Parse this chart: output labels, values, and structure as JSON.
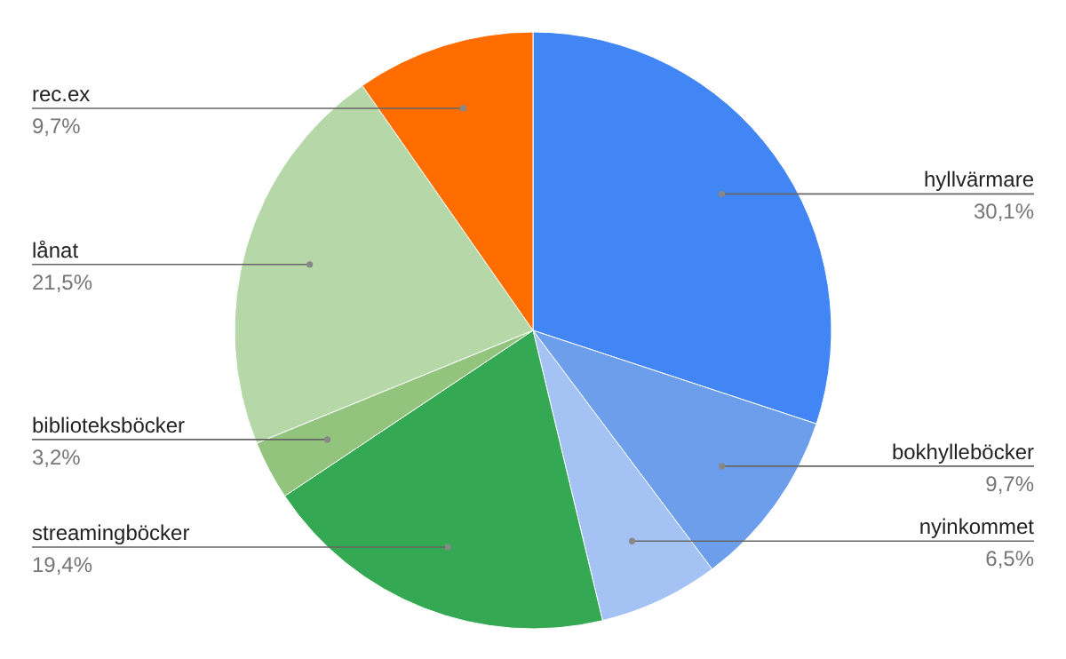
{
  "chart_data": {
    "type": "pie",
    "categories": [
      "hyllvärmare",
      "bokhylleböcker",
      "nyinkommet",
      "streamingböcker",
      "biblioteksböcker",
      "lånat",
      "rec.ex"
    ],
    "values": [
      30.1,
      9.7,
      6.5,
      19.4,
      3.2,
      21.5,
      9.7
    ],
    "colors": [
      "#4285f4",
      "#6d9eeb",
      "#a4c2f4",
      "#34a853",
      "#93c47d",
      "#b6d7a8",
      "#ff6d01"
    ],
    "value_labels": [
      "30,1%",
      "9,7%",
      "6,5%",
      "19,4%",
      "3,2%",
      "21,5%",
      "9,7%"
    ]
  }
}
